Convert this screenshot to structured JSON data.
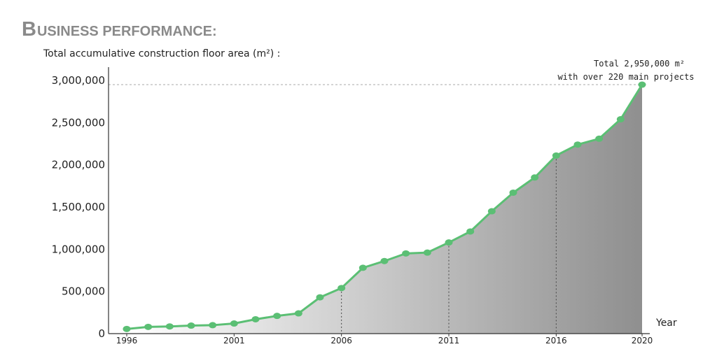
{
  "header": {
    "title_initial": "B",
    "title_rest": "USINESS PERFORMANCE:",
    "subtitle": "Total accumulative construction floor area (m²) :"
  },
  "chart_data": {
    "type": "area",
    "title": "BUSINESS PERFORMANCE:",
    "subtitle": "Total accumulative construction floor area (m²) :",
    "xlabel": "Year",
    "ylabel": "",
    "x": [
      1996,
      1997,
      1998,
      1999,
      2000,
      2001,
      2002,
      2003,
      2004,
      2005,
      2006,
      2007,
      2008,
      2009,
      2010,
      2011,
      2012,
      2013,
      2014,
      2015,
      2016,
      2017,
      2018,
      2019,
      2020
    ],
    "values": [
      55000,
      80000,
      85000,
      95000,
      100000,
      120000,
      170000,
      210000,
      240000,
      430000,
      540000,
      780000,
      860000,
      950000,
      960000,
      1080000,
      1210000,
      1450000,
      1670000,
      1850000,
      2110000,
      2240000,
      2310000,
      2540000,
      2950000
    ],
    "x_ticks": [
      1996,
      2001,
      2006,
      2011,
      2016,
      2020
    ],
    "x_tick_labels": [
      "1996",
      "2001",
      "2006",
      "2011",
      "2016",
      "2020"
    ],
    "y_ticks": [
      0,
      500000,
      1000000,
      1500000,
      2000000,
      2500000,
      3000000
    ],
    "y_tick_labels": [
      "0",
      "500,000",
      "1,000,000",
      "1,500,000",
      "2,000,000",
      "2,500,000",
      "3,000,000"
    ],
    "xlim": [
      1996,
      2020
    ],
    "ylim": [
      0,
      3000000
    ],
    "grid": false,
    "reference_lines": [
      2006,
      2011,
      2016
    ],
    "line_color": "#5bbf74",
    "fill_color_start": "#ffffff",
    "fill_color_end": "#8f8f8f",
    "annotation": {
      "line1": "Total 2,950,000 m²",
      "line2": "with over 220 main projects",
      "y": 2950000
    }
  }
}
